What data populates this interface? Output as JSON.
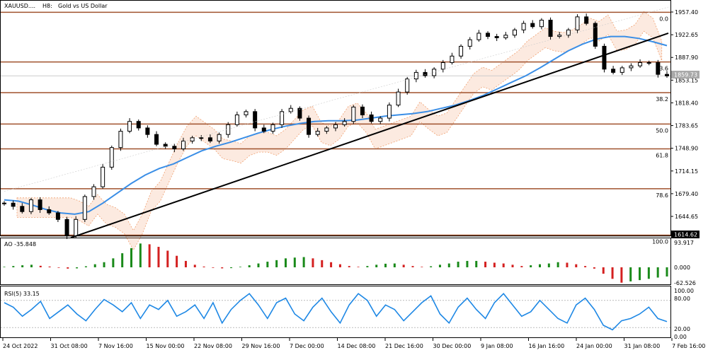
{
  "header": {
    "symbol": "XAUUSD....",
    "timeframe": "H8:",
    "description": "Gold vs US Dollar"
  },
  "colors": {
    "candle": "#000000",
    "ma": "#3a8ee6",
    "trendline": "#000000",
    "fib": "#a0522d",
    "cloud": "#f0a070",
    "ao_up": "#1a8a1a",
    "ao_down": "#d42020",
    "rsi": "#1e88e5",
    "current_box": "#a9a9a9",
    "low_box": "#000000"
  },
  "price_axis": {
    "ticks": [
      "1957.40",
      "1922.65",
      "1887.90",
      "1853.15",
      "1818.40",
      "1783.65",
      "1748.90",
      "1714.15",
      "1679.40",
      "1644.65"
    ],
    "current_price": "1859.73",
    "low_price": "1614.62"
  },
  "fib_levels": [
    {
      "label": "0.0",
      "price": 1957.0
    },
    {
      "label": "23.6",
      "price": 1881.0
    },
    {
      "label": "38.2",
      "price": 1834.0
    },
    {
      "label": "50.0",
      "price": 1786.0
    },
    {
      "label": "61.8",
      "price": 1748.0
    },
    {
      "label": "78.6",
      "price": 1687.0
    },
    {
      "label": "100.0",
      "price": 1616.0
    }
  ],
  "time_axis": {
    "labels": [
      "24 Oct 2022",
      "31 Oct 08:00",
      "7 Nov 16:00",
      "15 Nov 00:00",
      "22 Nov 08:00",
      "29 Nov 16:00",
      "7 Dec 00:00",
      "14 Dec 08:00",
      "21 Dec 16:00",
      "30 Dec 00:00",
      "9 Jan 08:00",
      "16 Jan 16:00",
      "24 Jan 00:00",
      "31 Jan 08:00",
      "7 Feb 16:00"
    ]
  },
  "ao": {
    "label": "AO -35.848",
    "ticks": [
      "93.917",
      "0.000",
      "-62.526"
    ]
  },
  "rsi": {
    "label": "RSI(5) 33.15",
    "ticks": [
      "100.00",
      "80.00",
      "20.00",
      "0.00"
    ]
  },
  "chart_data": {
    "type": "candlestick",
    "symbol": "XAUUSD",
    "timeframe": "H8",
    "close_path": [
      1665,
      1660,
      1652,
      1670,
      1655,
      1650,
      1640,
      1615,
      1640,
      1675,
      1690,
      1720,
      1750,
      1775,
      1790,
      1780,
      1770,
      1755,
      1752,
      1748,
      1760,
      1765,
      1765,
      1760,
      1770,
      1785,
      1800,
      1805,
      1780,
      1775,
      1785,
      1805,
      1810,
      1795,
      1770,
      1775,
      1780,
      1785,
      1790,
      1812,
      1800,
      1790,
      1795,
      1815,
      1835,
      1855,
      1865,
      1860,
      1870,
      1880,
      1890,
      1905,
      1915,
      1925,
      1920,
      1918,
      1922,
      1930,
      1940,
      1935,
      1945,
      1920,
      1922,
      1930,
      1950,
      1940,
      1905,
      1870,
      1865,
      1872,
      1875,
      1880,
      1880,
      1862,
      1859.73
    ],
    "ma_path": [
      1670,
      1668,
      1662,
      1655,
      1650,
      1648,
      1652,
      1665,
      1680,
      1695,
      1708,
      1718,
      1725,
      1735,
      1745,
      1752,
      1758,
      1765,
      1772,
      1778,
      1783,
      1787,
      1790,
      1791,
      1791,
      1792,
      1795,
      1798,
      1800,
      1802,
      1805,
      1810,
      1815,
      1822,
      1830,
      1840,
      1850,
      1860,
      1872,
      1885,
      1898,
      1908,
      1916,
      1920,
      1920,
      1917,
      1912,
      1906
    ],
    "ao_values": [
      2,
      5,
      8,
      10,
      6,
      3,
      -2,
      -5,
      -4,
      4,
      12,
      20,
      35,
      55,
      75,
      93,
      90,
      80,
      65,
      45,
      25,
      10,
      3,
      -2,
      -4,
      -3,
      2,
      8,
      15,
      22,
      28,
      35,
      38,
      40,
      35,
      28,
      20,
      12,
      5,
      2,
      5,
      10,
      14,
      15,
      10,
      5,
      2,
      4,
      10,
      15,
      22,
      25,
      25,
      22,
      18,
      15,
      10,
      5,
      8,
      12,
      15,
      20,
      18,
      12,
      5,
      -5,
      -25,
      -45,
      -60,
      -55,
      -50,
      -45,
      -40,
      -35.848
    ],
    "rsi_values": [
      75,
      65,
      45,
      60,
      78,
      40,
      55,
      70,
      50,
      35,
      60,
      82,
      70,
      55,
      75,
      40,
      70,
      60,
      80,
      45,
      55,
      70,
      40,
      75,
      30,
      60,
      80,
      95,
      70,
      40,
      75,
      85,
      50,
      35,
      65,
      85,
      55,
      30,
      70,
      95,
      80,
      45,
      70,
      60,
      35,
      55,
      75,
      90,
      50,
      30,
      65,
      85,
      60,
      40,
      75,
      95,
      70,
      45,
      55,
      80,
      60,
      40,
      30,
      70,
      85,
      60,
      25,
      15,
      35,
      40,
      50,
      65,
      40,
      33.15
    ]
  }
}
